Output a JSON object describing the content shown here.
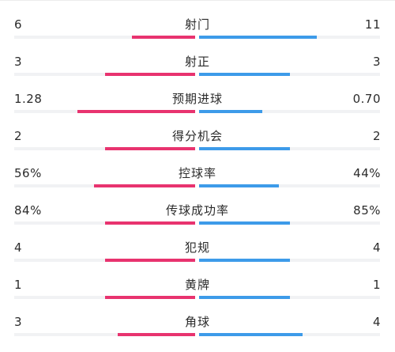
{
  "colors": {
    "home": "#e8336f",
    "away": "#3d9be9"
  },
  "stats": [
    {
      "label": "射门",
      "home": "6",
      "away": "11",
      "home_share": 0.35,
      "away_share": 0.65
    },
    {
      "label": "射正",
      "home": "3",
      "away": "3",
      "home_share": 0.5,
      "away_share": 0.5
    },
    {
      "label": "预期进球",
      "home": "1.28",
      "away": "0.70",
      "home_share": 0.65,
      "away_share": 0.35
    },
    {
      "label": "得分机会",
      "home": "2",
      "away": "2",
      "home_share": 0.5,
      "away_share": 0.5
    },
    {
      "label": "控球率",
      "home": "56%",
      "away": "44%",
      "home_share": 0.56,
      "away_share": 0.44
    },
    {
      "label": "传球成功率",
      "home": "84%",
      "away": "85%",
      "home_share": 0.5,
      "away_share": 0.5
    },
    {
      "label": "犯规",
      "home": "4",
      "away": "4",
      "home_share": 0.5,
      "away_share": 0.5
    },
    {
      "label": "黄牌",
      "home": "1",
      "away": "1",
      "home_share": 0.5,
      "away_share": 0.5
    },
    {
      "label": "角球",
      "home": "3",
      "away": "4",
      "home_share": 0.43,
      "away_share": 0.57
    }
  ]
}
